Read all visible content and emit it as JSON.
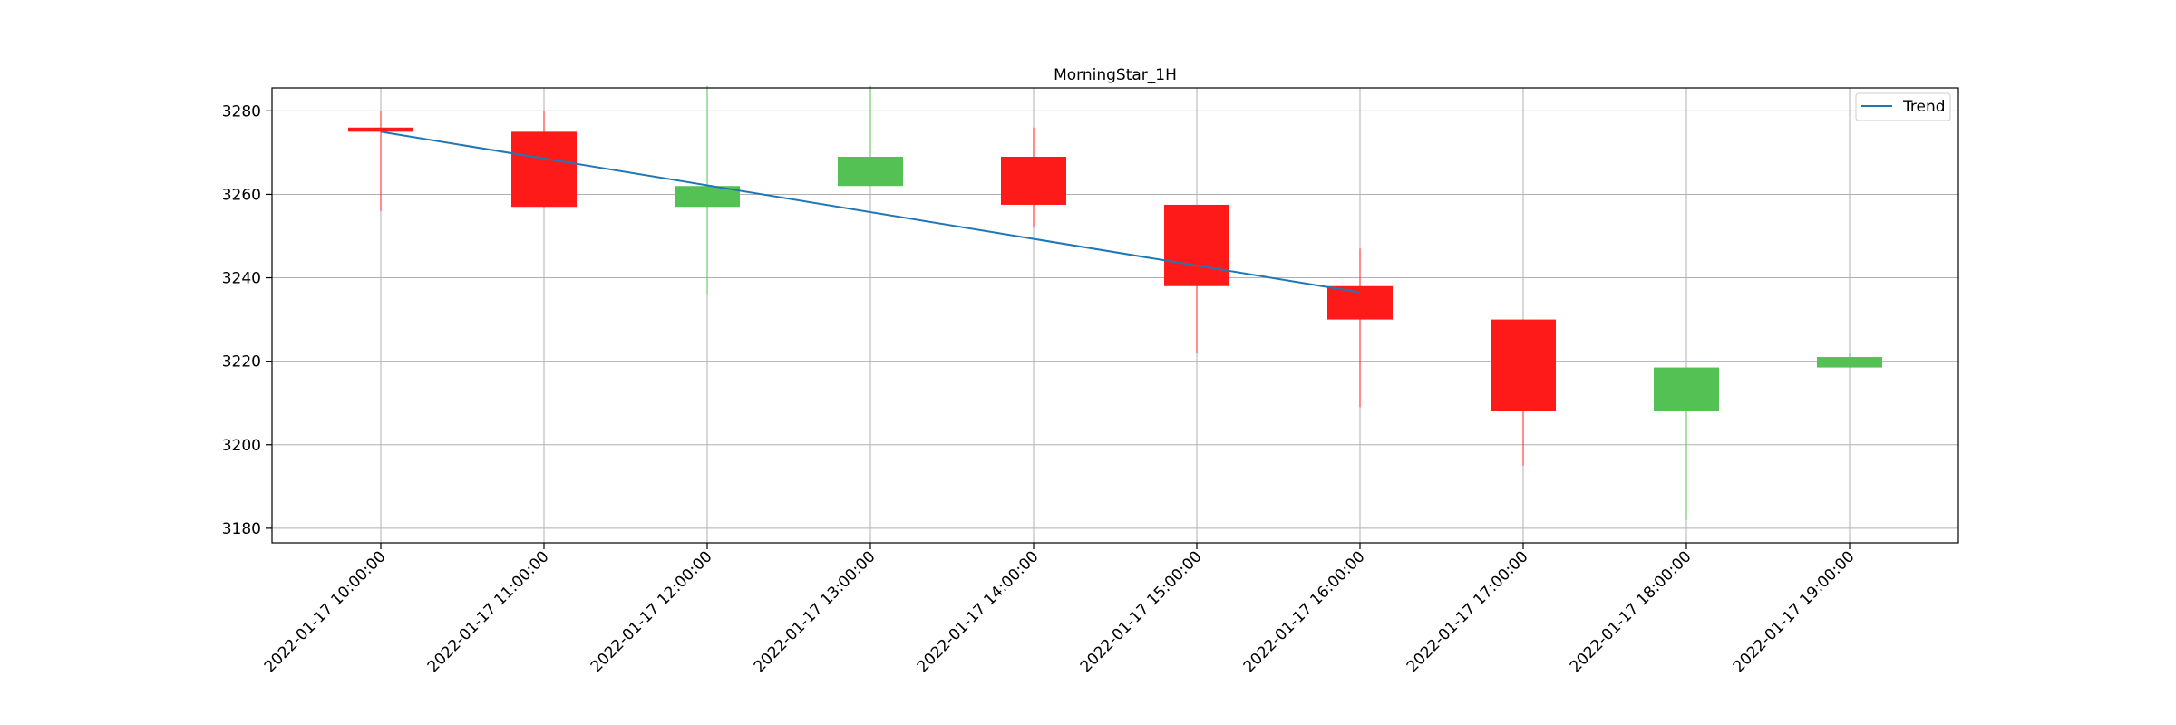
{
  "chart_data": {
    "type": "candlestick",
    "title": "MorningStar_1H",
    "xlabel": "",
    "ylabel": "",
    "categories": [
      "2022-01-17 10:00:00",
      "2022-01-17 11:00:00",
      "2022-01-17 12:00:00",
      "2022-01-17 13:00:00",
      "2022-01-17 14:00:00",
      "2022-01-17 15:00:00",
      "2022-01-17 16:00:00",
      "2022-01-17 17:00:00",
      "2022-01-17 18:00:00",
      "2022-01-17 19:00:00"
    ],
    "candles": [
      {
        "open": 3276,
        "high": 3280,
        "low": 3256,
        "close": 3275
      },
      {
        "open": 3275,
        "high": 3280,
        "low": 3257,
        "close": 3257
      },
      {
        "open": 3257,
        "high": 3286,
        "low": 3236,
        "close": 3262
      },
      {
        "open": 3262,
        "high": 3286,
        "low": 3262,
        "close": 3269
      },
      {
        "open": 3269,
        "high": 3276,
        "low": 3252,
        "close": 3257.5
      },
      {
        "open": 3257.5,
        "high": 3257.5,
        "low": 3222,
        "close": 3238
      },
      {
        "open": 3238,
        "high": 3247,
        "low": 3209,
        "close": 3230
      },
      {
        "open": 3230,
        "high": 3230,
        "low": 3195,
        "close": 3208
      },
      {
        "open": 3208,
        "high": 3218.5,
        "low": 3182,
        "close": 3218.5
      },
      {
        "open": 3218.5,
        "high": 3222,
        "low": 3218.5,
        "close": 3221
      }
    ],
    "trend": {
      "name": "Trend",
      "start_index": 0,
      "start_value": 3275,
      "end_index": 6,
      "end_value": 3236.5
    },
    "yticks": [
      3180,
      3200,
      3220,
      3240,
      3260,
      3280
    ],
    "ylim": [
      3176.5,
      3285.5
    ],
    "grid": true,
    "legend_position": "top-right",
    "colors": {
      "up": "#53c153",
      "down": "#ff1a1a",
      "trend": "#1f77b4",
      "grid": "#b0b0b0",
      "axis": "#000000"
    }
  }
}
